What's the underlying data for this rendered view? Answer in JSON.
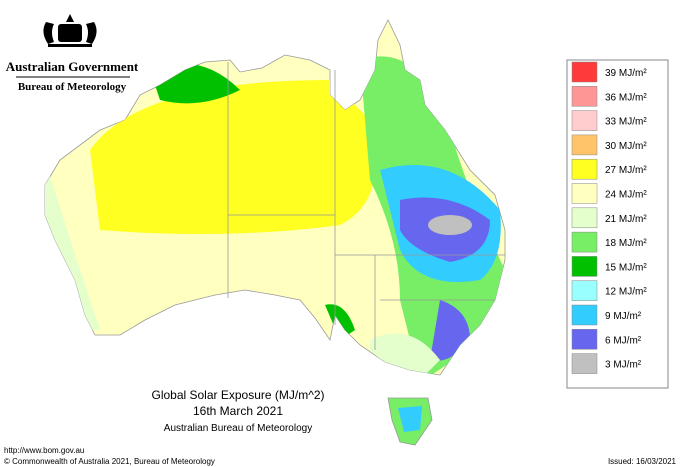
{
  "header": {
    "government": "Australian Government",
    "agency": "Bureau of Meteorology"
  },
  "map": {
    "title": "Global Solar Exposure (MJ/m^2)",
    "date": "16th March 2021",
    "source": "Australian Bureau of Meteorology"
  },
  "legend": {
    "items": [
      {
        "label": "39 MJ/m²",
        "color": "#ff3a3a"
      },
      {
        "label": "36 MJ/m²",
        "color": "#ff9696"
      },
      {
        "label": "33 MJ/m²",
        "color": "#ffcdcd"
      },
      {
        "label": "30 MJ/m²",
        "color": "#ffc46a"
      },
      {
        "label": "27 MJ/m²",
        "color": "#ffff22"
      },
      {
        "label": "24 MJ/m²",
        "color": "#ffffc0"
      },
      {
        "label": "21 MJ/m²",
        "color": "#e4ffcc"
      },
      {
        "label": "18 MJ/m²",
        "color": "#77ee66"
      },
      {
        "label": "15 MJ/m²",
        "color": "#00c000"
      },
      {
        "label": "12 MJ/m²",
        "color": "#99ffff"
      },
      {
        "label": "9 MJ/m²",
        "color": "#33ccff"
      },
      {
        "label": "6 MJ/m²",
        "color": "#6666ee"
      },
      {
        "label": "3 MJ/m²",
        "color": "#c0c0c0"
      }
    ]
  },
  "footer": {
    "url": "http://www.bom.gov.au",
    "copyright": "© Commonwealth of Australia 2021, Bureau of Meteorology",
    "issued": "Issued: 16/03/2021"
  }
}
